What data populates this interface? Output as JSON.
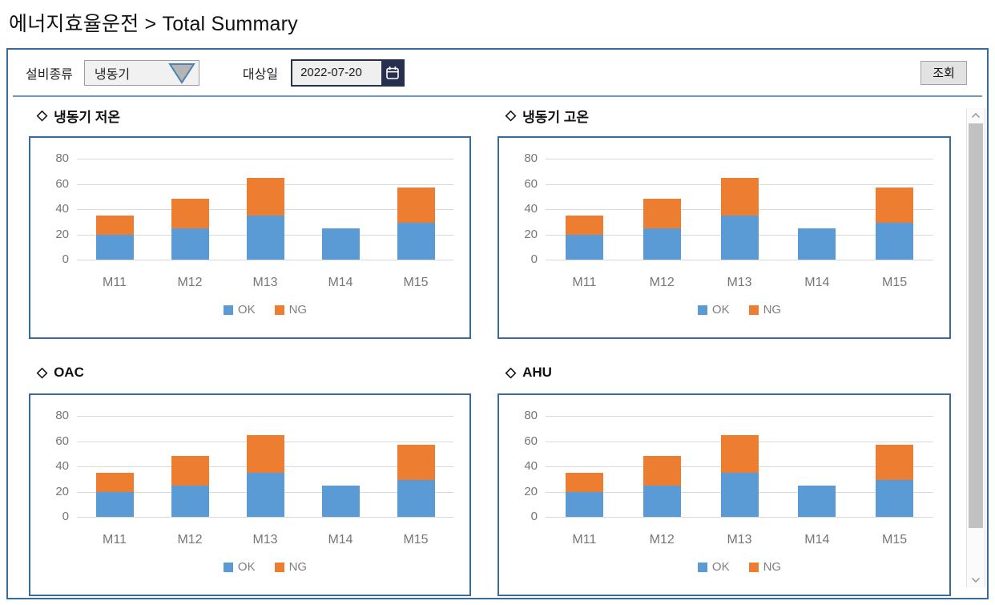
{
  "header": {
    "title": "에너지효율운전 > Total Summary"
  },
  "toolbar": {
    "equipment_label": "설비종류",
    "equipment_value": "냉동기",
    "date_label": "대상일",
    "date_value": "2022-07-20",
    "search_label": "조회"
  },
  "ui": {
    "diamond": "◇"
  },
  "colors": {
    "ok": "#5B9BD5",
    "ng": "#ED7D31",
    "panel_border": "#3A6B9C",
    "gridline": "#D9D9D9",
    "axis_text": "#767676"
  },
  "chart_data": [
    {
      "type": "bar",
      "stacked": true,
      "title": "냉동기 저온",
      "categories": [
        "M11",
        "M12",
        "M13",
        "M14",
        "M15"
      ],
      "series": [
        {
          "name": "OK",
          "color": "#5B9BD5",
          "values": [
            20,
            25,
            35,
            25,
            29
          ]
        },
        {
          "name": "NG",
          "color": "#ED7D31",
          "values": [
            15,
            23,
            30,
            0,
            28
          ]
        }
      ],
      "yticks": [
        0,
        20,
        40,
        60,
        80
      ],
      "ylim": [
        0,
        80
      ],
      "grid": true,
      "legend_position": "bottom"
    },
    {
      "type": "bar",
      "stacked": true,
      "title": "냉동기 고온",
      "categories": [
        "M11",
        "M12",
        "M13",
        "M14",
        "M15"
      ],
      "series": [
        {
          "name": "OK",
          "color": "#5B9BD5",
          "values": [
            20,
            25,
            35,
            25,
            29
          ]
        },
        {
          "name": "NG",
          "color": "#ED7D31",
          "values": [
            15,
            23,
            30,
            0,
            28
          ]
        }
      ],
      "yticks": [
        0,
        20,
        40,
        60,
        80
      ],
      "ylim": [
        0,
        80
      ],
      "grid": true,
      "legend_position": "bottom"
    },
    {
      "type": "bar",
      "stacked": true,
      "title": "OAC",
      "categories": [
        "M11",
        "M12",
        "M13",
        "M14",
        "M15"
      ],
      "series": [
        {
          "name": "OK",
          "color": "#5B9BD5",
          "values": [
            20,
            25,
            35,
            25,
            29
          ]
        },
        {
          "name": "NG",
          "color": "#ED7D31",
          "values": [
            15,
            23,
            30,
            0,
            28
          ]
        }
      ],
      "yticks": [
        0,
        20,
        40,
        60,
        80
      ],
      "ylim": [
        0,
        80
      ],
      "grid": true,
      "legend_position": "bottom"
    },
    {
      "type": "bar",
      "stacked": true,
      "title": "AHU",
      "categories": [
        "M11",
        "M12",
        "M13",
        "M14",
        "M15"
      ],
      "series": [
        {
          "name": "OK",
          "color": "#5B9BD5",
          "values": [
            20,
            25,
            35,
            25,
            29
          ]
        },
        {
          "name": "NG",
          "color": "#ED7D31",
          "values": [
            15,
            23,
            30,
            0,
            28
          ]
        }
      ],
      "yticks": [
        0,
        20,
        40,
        60,
        80
      ],
      "ylim": [
        0,
        80
      ],
      "grid": true,
      "legend_position": "bottom"
    }
  ]
}
